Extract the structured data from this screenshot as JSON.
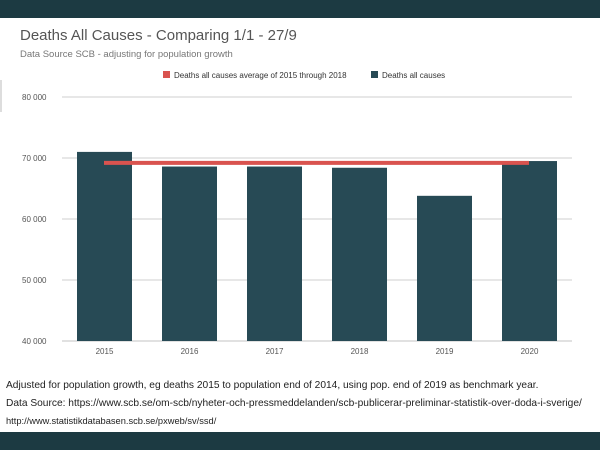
{
  "colors": {
    "frame": "#1c3a42",
    "bar": "#274a55",
    "average_line": "#d9534f",
    "grid": "#cfcfcf",
    "title": "#555555",
    "tick": "#555555"
  },
  "chart_data": {
    "type": "bar",
    "title": "Deaths All Causes - Comparing 1/1 - 27/9",
    "subtitle": "Data Source SCB - adjusting for population growth",
    "categories": [
      "2015",
      "2016",
      "2017",
      "2018",
      "2019",
      "2020"
    ],
    "series": [
      {
        "name": "Deaths all causes",
        "type": "bar",
        "values": [
          71000,
          68600,
          68600,
          68400,
          63800,
          69500
        ]
      },
      {
        "name": "Deaths all causes average of 2015 through 2018",
        "type": "line",
        "values": [
          69200,
          69200,
          69200,
          69200,
          69200,
          69200
        ]
      }
    ],
    "ylim": [
      40000,
      80000
    ],
    "yticks": [
      40000,
      50000,
      60000,
      70000,
      80000
    ],
    "ytick_labels": [
      "40 000",
      "50 000",
      "60 000",
      "70 000",
      "80 000"
    ],
    "xlabel": "",
    "ylabel": "",
    "grid": true,
    "legend_position": "top"
  },
  "footnotes": [
    "Adjusted for population growth, eg deaths 2015 to population end of 2014, using pop. end of 2019 as benchmark year.",
    "Data Source: https://www.scb.se/om-scb/nyheter-och-pressmeddelanden/scb-publicerar-preliminar-statistik-over-doda-i-sverige/",
    "http://www.statistikdatabasen.scb.se/pxweb/sv/ssd/"
  ]
}
